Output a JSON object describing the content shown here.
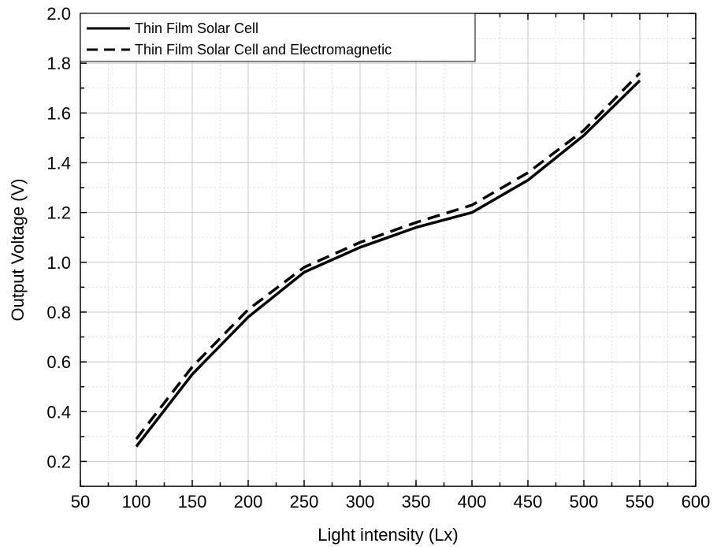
{
  "chart_data": {
    "type": "line",
    "title": "",
    "xlabel": "Light intensity (Lx)",
    "ylabel": "Output Voltage (V)",
    "xlim": [
      50,
      600
    ],
    "ylim": [
      0.1,
      2.0
    ],
    "xticks": [
      "50",
      "100",
      "150",
      "200",
      "250",
      "300",
      "350",
      "400",
      "450",
      "500",
      "550",
      "600"
    ],
    "yticks": [
      "0.2",
      "0.4",
      "0.6",
      "0.8",
      "1.0",
      "1.2",
      "1.4",
      "1.6",
      "1.8",
      "2.0"
    ],
    "grid": true,
    "legend_position": "top-left",
    "x": [
      100,
      150,
      200,
      250,
      300,
      350,
      400,
      450,
      500,
      550
    ],
    "series": [
      {
        "name": "Thin Film Solar Cell",
        "style": "solid",
        "color": "#000000",
        "values": [
          0.26,
          0.55,
          0.78,
          0.96,
          1.06,
          1.14,
          1.2,
          1.33,
          1.51,
          1.73
        ]
      },
      {
        "name": "Thin Film Solar Cell and Electromagnetic",
        "style": "dashed",
        "color": "#000000",
        "values": [
          0.29,
          0.58,
          0.81,
          0.98,
          1.08,
          1.16,
          1.23,
          1.36,
          1.53,
          1.76
        ]
      }
    ]
  }
}
